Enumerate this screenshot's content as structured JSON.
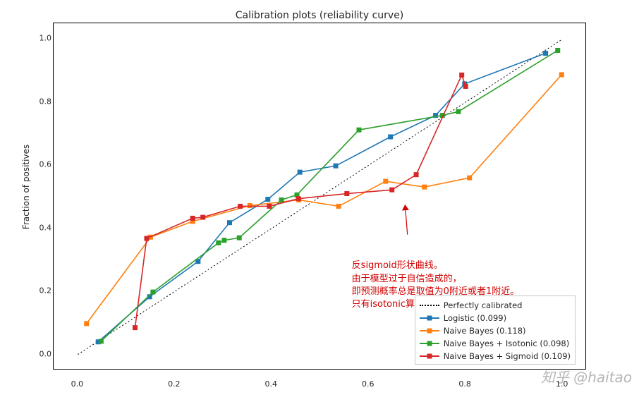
{
  "title": "Calibration plots  (reliability curve)",
  "ylabel": "Fraction of positives",
  "watermark": "知乎 @haitao",
  "plot": {
    "type": "line",
    "xlim": [
      -0.05,
      1.05
    ],
    "ylim": [
      -0.05,
      1.05
    ],
    "xtick_step": 0.2,
    "ytick_step": 0.2,
    "xtick_labels": [
      "0.0",
      "0.2",
      "0.4",
      "0.6",
      "0.8",
      "1.0"
    ],
    "ytick_labels": [
      "0.0",
      "0.2",
      "0.4",
      "0.6",
      "0.8",
      "1.0"
    ],
    "background_color": "#ffffff",
    "border_color": "#000000",
    "tick_fontsize": 11,
    "title_fontsize": 14,
    "label_fontsize": 12
  },
  "reference": {
    "name": "Perfectly calibrated",
    "color": "#000000",
    "dash": "2,3",
    "line_width": 1,
    "x": [
      0.0,
      1.0
    ],
    "y": [
      0.0,
      1.0
    ]
  },
  "series": [
    {
      "name": "Logistic (0.099)",
      "color": "#1f77b4",
      "marker": "s",
      "line_width": 1.6,
      "marker_size": 7,
      "x": [
        0.042,
        0.148,
        0.248,
        0.313,
        0.392,
        0.458,
        0.532,
        0.645,
        0.738,
        0.798,
        0.965
      ],
      "y": [
        0.04,
        0.183,
        0.295,
        0.418,
        0.492,
        0.578,
        0.598,
        0.69,
        0.758,
        0.858,
        0.955
      ]
    },
    {
      "name": "Naive Bayes (0.118)",
      "color": "#ff7f0e",
      "marker": "s",
      "line_width": 1.6,
      "marker_size": 7,
      "x": [
        0.018,
        0.15,
        0.237,
        0.355,
        0.456,
        0.538,
        0.635,
        0.715,
        0.808,
        0.998
      ],
      "y": [
        0.098,
        0.372,
        0.422,
        0.472,
        0.49,
        0.47,
        0.549,
        0.531,
        0.56,
        0.887
      ]
    },
    {
      "name": "Naive Bayes + Isotonic (0.098)",
      "color": "#2ca02c",
      "marker": "s",
      "line_width": 1.6,
      "marker_size": 7,
      "x": [
        0.048,
        0.155,
        0.29,
        0.302,
        0.333,
        0.42,
        0.452,
        0.58,
        0.752,
        0.785,
        0.99
      ],
      "y": [
        0.042,
        0.198,
        0.354,
        0.362,
        0.37,
        0.49,
        0.506,
        0.712,
        0.758,
        0.77,
        0.964
      ]
    },
    {
      "name": "Naive Bayes + Sigmoid (0.109)",
      "color": "#d62728",
      "marker": "s",
      "line_width": 1.6,
      "marker_size": 7,
      "x": [
        0.118,
        0.142,
        0.237,
        0.258,
        0.335,
        0.395,
        0.455,
        0.555,
        0.648,
        0.698,
        0.792,
        0.8
      ],
      "y": [
        0.085,
        0.368,
        0.432,
        0.435,
        0.47,
        0.47,
        0.494,
        0.51,
        0.522,
        0.57,
        0.886,
        0.85
      ]
    }
  ],
  "legend": {
    "position": "lower-right",
    "border_color": "#c8c8c8",
    "background": "#ffffff",
    "fontsize": 11.5
  },
  "annotations": [
    {
      "text": "反sigmoid形状曲线。",
      "color": "#d20000"
    },
    {
      "text": "由于模型过于自信造成的，",
      "color": "#d20000"
    },
    {
      "text": "即预测概率总是取值为0附近或者1附近。",
      "color": "#d20000"
    },
    {
      "text": "只有isotonic算法可以校准。",
      "color": "#d20000"
    }
  ],
  "arrow": {
    "color": "#d20000",
    "from_data": [
      0.68,
      0.38
    ],
    "to_data": [
      0.675,
      0.475
    ],
    "line_width": 1.2
  },
  "annotation_block_topleft_data": [
    0.565,
    0.3
  ]
}
